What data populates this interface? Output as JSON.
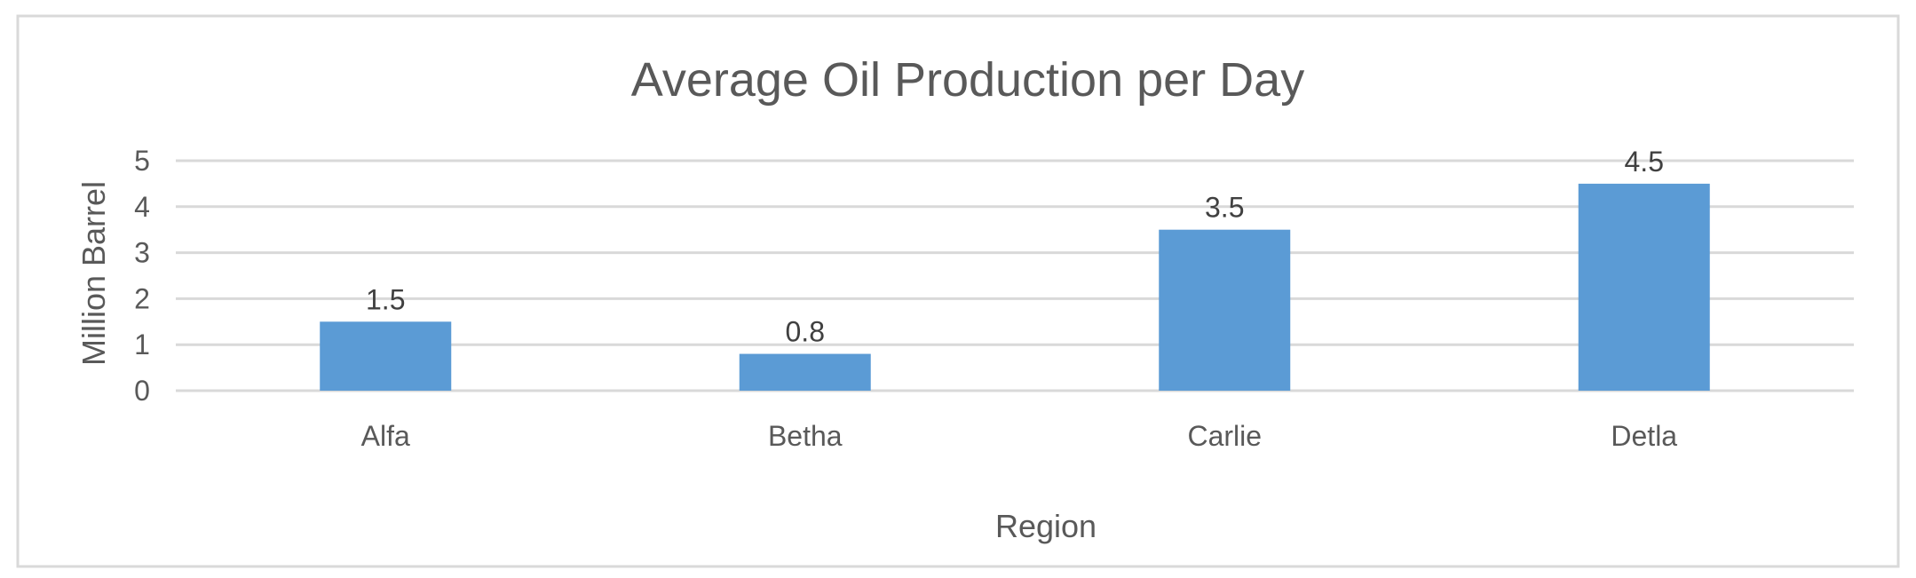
{
  "chart_data": {
    "type": "bar",
    "title": "Average Oil Production per Day",
    "xlabel": "Region",
    "ylabel": "Million Barrel",
    "categories": [
      "Alfa",
      "Betha",
      "Carlie",
      "Detla"
    ],
    "values": [
      1.5,
      0.8,
      3.5,
      4.5
    ],
    "data_labels": [
      "1.5",
      "0.8",
      "3.5",
      "4.5"
    ],
    "ylim": [
      0,
      5
    ],
    "yticks": [
      0,
      1,
      2,
      3,
      4,
      5
    ],
    "ytick_labels": [
      "0",
      "1",
      "2",
      "3",
      "4",
      "5"
    ],
    "grid": true,
    "legend": "none",
    "bar_color": "#5B9BD5",
    "gridline_color": "#D9D9D9",
    "text_color": "#595959"
  }
}
